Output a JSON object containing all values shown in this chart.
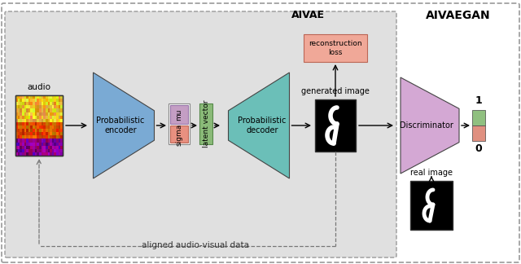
{
  "bg_color": "#e8e8e8",
  "aivaegan_label": "AIVAEGAN",
  "aivae_label": "AIVAE",
  "aligned_label": "aligned audio-visual data",
  "audio_label": "audio",
  "generated_label": "generated image",
  "real_label": "real image",
  "encoder_color": "#7aaad4",
  "decoder_color": "#6bbfb8",
  "discriminator_color": "#d4a8d4",
  "mu_color": "#c49ec4",
  "sigma_color": "#e89080",
  "latent_color": "#8aba78",
  "recon_box_color": "#f0a898",
  "output_bar_green": "#90c080",
  "output_bar_red": "#e09080",
  "encoder_label": "Probabilistic\nencoder",
  "decoder_label": "Probabilistic\ndecoder",
  "discriminator_label": "Discriminator",
  "mu_label": "mu",
  "sigma_label": "sigma",
  "latent_label": "latent vector",
  "recon_label": "reconstruction\nloss",
  "label1": "1",
  "label0": "0"
}
